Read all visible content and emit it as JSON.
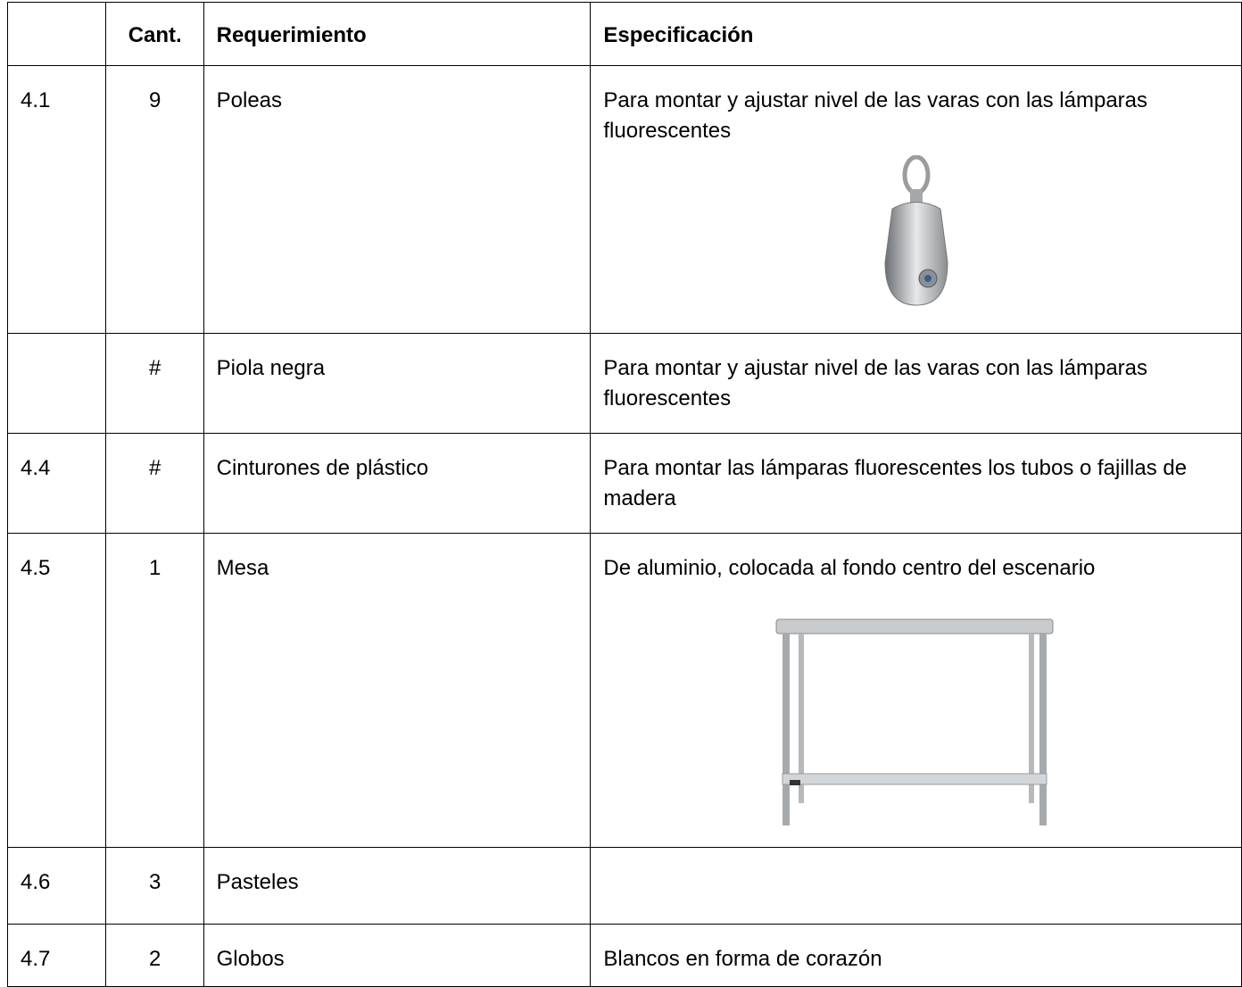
{
  "table": {
    "header": [
      "Cant.",
      "Requerimiento",
      "Especificación"
    ],
    "rows": [
      {
        "number": "4.1",
        "qty": "9",
        "item": "Poleas",
        "spec": "Para montar y ajustar nivel de las varas con las lámparas fluorescentes"
      },
      {
        "qty": "#",
        "item": "Piola negra",
        "spec": "Para montar y ajustar nivel de las varas con las lámparas fluorescentes"
      },
      {
        "number": "4.4",
        "qty": "#",
        "item": "Cinturones de plástico",
        "spec": "Para montar las lámparas fluorescentes los tubos o fajillas de madera"
      },
      {
        "number": "4.5",
        "qty": "1",
        "item": "Mesa",
        "spec": "De aluminio, colocada al fondo centro del escenario"
      },
      {
        "number": "4.6",
        "qty": "3",
        "item": "Pasteles"
      },
      {
        "number": "4.7",
        "qty": "2",
        "item": "Globos",
        "spec": "Blancos en forma de corazón"
      }
    ]
  }
}
